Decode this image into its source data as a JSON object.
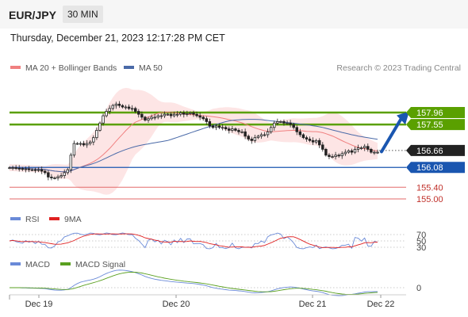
{
  "header": {
    "pair": "EUR/JPY",
    "timeframe": "30 MIN"
  },
  "datetime": "Thursday, December 21, 2023 12:17:28 PM CET",
  "credit": "Research © 2023 Trading Central",
  "colors": {
    "accent_green": "#5aa000",
    "support_blue": "#1a56b0",
    "resistance_red": "#e36a6a",
    "price_black": "#222222",
    "bollinger_fill": "#fde2e2",
    "ma20": "#f08080",
    "ma50": "#4a6aa8",
    "rsi": "#6a8ad8",
    "nine_ma": "#e02020",
    "macd": "#6a8ad8",
    "macd_signal": "#5aa020"
  },
  "chart_data": [
    {
      "type": "candlestick",
      "title": "",
      "legend": [
        {
          "name": "MA 20 + Bollinger Bands",
          "color": "#f08080"
        },
        {
          "name": "MA 50",
          "color": "#4a6aa8"
        }
      ],
      "ylim": [
        154.8,
        158.3
      ],
      "x_labels": [
        "Dec 19",
        "Dec 20",
        "Dec 21",
        "Dec 22"
      ],
      "levels": [
        {
          "label": "157.96",
          "value": 157.96,
          "kind": "resistance-target"
        },
        {
          "label": "157.55",
          "value": 157.55,
          "kind": "resistance-target"
        },
        {
          "label": "156.66",
          "value": 156.66,
          "kind": "last-price"
        },
        {
          "label": "156.08",
          "value": 156.08,
          "kind": "pivot"
        },
        {
          "label": "155.40",
          "value": 155.4,
          "kind": "support"
        },
        {
          "label": "155.00",
          "value": 155.0,
          "kind": "support"
        }
      ],
      "close": [
        156.07,
        156.07,
        156.05,
        156.04,
        156.02,
        156.03,
        156.0,
        156.0,
        155.98,
        156.0,
        155.95,
        155.9,
        155.75,
        155.72,
        155.72,
        155.76,
        155.8,
        155.9,
        156.0,
        156.5,
        156.9,
        156.9,
        156.9,
        156.85,
        156.9,
        156.95,
        157.1,
        157.35,
        157.6,
        157.85,
        158.0,
        158.1,
        158.2,
        158.25,
        158.2,
        158.15,
        158.15,
        158.1,
        158.1,
        158.0,
        157.9,
        157.8,
        157.7,
        157.75,
        157.8,
        157.8,
        157.85,
        157.85,
        157.9,
        157.9,
        157.85,
        157.9,
        157.9,
        157.95,
        157.9,
        157.92,
        157.95,
        157.9,
        157.85,
        157.8,
        157.75,
        157.65,
        157.5,
        157.45,
        157.5,
        157.45,
        157.45,
        157.4,
        157.35,
        157.4,
        157.35,
        157.3,
        157.3,
        157.15,
        157.05,
        157.0,
        157.1,
        157.15,
        157.2,
        157.2,
        157.3,
        157.45,
        157.6,
        157.65,
        157.65,
        157.6,
        157.6,
        157.55,
        157.45,
        157.3,
        157.2,
        157.1,
        157.05,
        157.0,
        156.95,
        157.0,
        156.85,
        156.7,
        156.5,
        156.45,
        156.45,
        156.5,
        156.48,
        156.55,
        156.6,
        156.65,
        156.6,
        156.7,
        156.75,
        156.75,
        156.8,
        156.7,
        156.6,
        156.6,
        156.6
      ],
      "series": [
        {
          "name": "MA 20 + Bollinger Bands",
          "type": "line+band"
        },
        {
          "name": "MA 50",
          "type": "line"
        }
      ]
    },
    {
      "type": "line",
      "title": "",
      "legend": [
        {
          "name": "RSI",
          "color": "#6a8ad8"
        },
        {
          "name": "9MA",
          "color": "#e02020"
        }
      ],
      "y_ticks": [
        "70",
        "50",
        "30"
      ],
      "ylim": [
        0,
        100
      ]
    },
    {
      "type": "line",
      "title": "",
      "legend": [
        {
          "name": "MACD",
          "color": "#6a8ad8"
        },
        {
          "name": "MACD Signal",
          "color": "#5aa020"
        }
      ],
      "y_ticks": [
        "0"
      ]
    }
  ]
}
